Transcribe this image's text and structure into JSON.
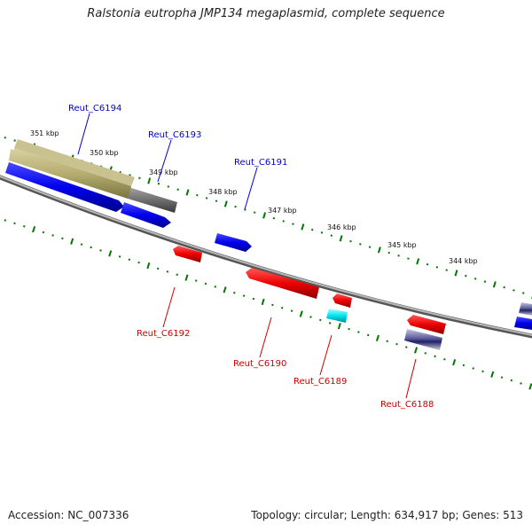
{
  "title": "Ralstonia eutropha JMP134 megaplasmid, complete sequence",
  "accession": "Accession: NC_007336",
  "summary": "Topology: circular; Length: 634,917 bp; Genes: 513",
  "colors": {
    "forward_gene": "#0000ee",
    "reverse_gene": "#ee0000",
    "cyan_gene": "#00e5ee",
    "olive_region": "#b5ad70",
    "grey_region": "#6e6e6e",
    "navy_region": "#5a5a9a",
    "backbone": "#808080",
    "tick": "#007700",
    "forward_label": "#0000cc",
    "reverse_label": "#cc0000"
  },
  "scale_labels": [
    "351 kbp",
    "350 kbp",
    "349 kbp",
    "348 kbp",
    "347 kbp",
    "346 kbp",
    "345 kbp",
    "344 kbp"
  ],
  "gene_labels": {
    "forward": [
      "Reut_C6194",
      "Reut_C6193",
      "Reut_C6191"
    ],
    "reverse": [
      "Reut_C6192",
      "Reut_C6190",
      "Reut_C6189",
      "Reut_C6188"
    ]
  }
}
